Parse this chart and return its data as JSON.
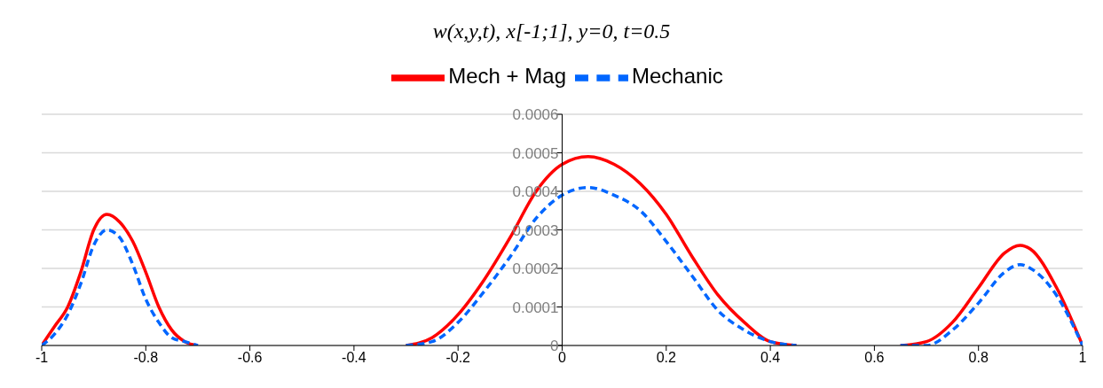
{
  "chart_data": {
    "type": "line",
    "title": "w(x,y,t),  x[-1;1], y=0, t=0.5",
    "x": [
      -1,
      -0.975,
      -0.95,
      -0.925,
      -0.9,
      -0.875,
      -0.85,
      -0.825,
      -0.8,
      -0.775,
      -0.75,
      -0.725,
      -0.7,
      -0.5,
      -0.3,
      -0.25,
      -0.2,
      -0.15,
      -0.1,
      -0.05,
      0,
      0.05,
      0.1,
      0.15,
      0.2,
      0.25,
      0.3,
      0.35,
      0.4,
      0.45,
      0.55,
      0.65,
      0.7,
      0.75,
      0.8,
      0.85,
      0.88,
      0.9,
      0.95,
      1
    ],
    "series": [
      {
        "name": "Mech + Mag",
        "color": "#ff0000",
        "line_style": "solid",
        "values": [
          0,
          5e-05,
          0.0001,
          0.00019,
          0.0003,
          0.00034,
          0.00032,
          0.00027,
          0.00019,
          0.0001,
          4e-05,
          1e-05,
          0,
          null,
          0,
          2e-05,
          8e-05,
          0.00017,
          0.00028,
          0.0004,
          0.00047,
          0.00049,
          0.00047,
          0.00042,
          0.00034,
          0.00023,
          0.00013,
          6e-05,
          1e-05,
          0,
          null,
          0,
          1e-05,
          6e-05,
          0.00015,
          0.00024,
          0.00026,
          0.00025,
          0.00015,
          0
        ]
      },
      {
        "name": "Mechanic",
        "color": "#0066ff",
        "line_style": "dashed",
        "values": [
          0,
          3e-05,
          8e-05,
          0.00016,
          0.00026,
          0.0003,
          0.00028,
          0.00021,
          0.00012,
          6e-05,
          2e-05,
          1e-05,
          0,
          null,
          0,
          1e-05,
          6e-05,
          0.00014,
          0.00023,
          0.00033,
          0.00039,
          0.00041,
          0.00039,
          0.00035,
          0.00027,
          0.00018,
          9e-05,
          4e-05,
          1e-05,
          0,
          null,
          0,
          0,
          4e-05,
          0.00011,
          0.00019,
          0.00021,
          0.0002,
          0.00013,
          0
        ]
      }
    ],
    "xlim": [
      -1,
      1
    ],
    "xticks": [
      -1,
      -0.8,
      -0.6,
      -0.4,
      -0.2,
      0,
      0.2,
      0.4,
      0.6,
      0.8,
      1
    ],
    "ylim": [
      0,
      0.0006
    ],
    "yticks": [
      0,
      0.0001,
      0.0002,
      0.0003,
      0.0004,
      0.0005,
      0.0006
    ],
    "grid": "y",
    "legend": "top",
    "marker": "none"
  }
}
